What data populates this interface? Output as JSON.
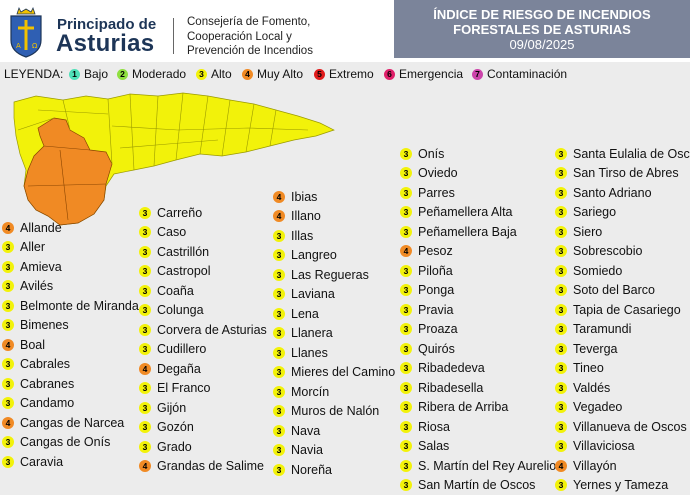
{
  "header": {
    "brand_line1": "Principado de",
    "brand_line2": "Asturias",
    "consejeria": [
      "Consejería de Fomento,",
      "Cooperación Local y",
      "Prevención de Incendios"
    ],
    "title_line1": "ÍNDICE DE RIESGO DE INCENDIOS",
    "title_line2": "FORESTALES DE ASTURIAS",
    "date": "09/08/2025"
  },
  "colors": {
    "1": "#4fe0b8",
    "2": "#8fe040",
    "3": "#f2f20a",
    "4": "#f08a24",
    "5": "#e11b1b",
    "6": "#e0206a",
    "7": "#cc44aa",
    "map_yellow": "#f2f20a",
    "map_orange": "#f08a24",
    "title_bg": "#7b849a"
  },
  "legend": {
    "title": "LEYENDA:",
    "items": [
      {
        "num": "1",
        "label": "Bajo"
      },
      {
        "num": "2",
        "label": "Moderado"
      },
      {
        "num": "3",
        "label": "Alto"
      },
      {
        "num": "4",
        "label": "Muy Alto"
      },
      {
        "num": "5",
        "label": "Extremo"
      },
      {
        "num": "6",
        "label": "Emergencia"
      },
      {
        "num": "7",
        "label": "Contaminación"
      }
    ]
  },
  "columns": [
    [
      {
        "n": "4",
        "name": "Allande"
      },
      {
        "n": "3",
        "name": "Aller"
      },
      {
        "n": "3",
        "name": "Amieva"
      },
      {
        "n": "3",
        "name": "Avilés"
      },
      {
        "n": "3",
        "name": "Belmonte de Miranda"
      },
      {
        "n": "3",
        "name": "Bimenes"
      },
      {
        "n": "4",
        "name": "Boal"
      },
      {
        "n": "3",
        "name": "Cabrales"
      },
      {
        "n": "3",
        "name": "Cabranes"
      },
      {
        "n": "3",
        "name": "Candamo"
      },
      {
        "n": "4",
        "name": "Cangas de Narcea"
      },
      {
        "n": "3",
        "name": "Cangas de Onís"
      },
      {
        "n": "3",
        "name": "Caravia"
      }
    ],
    [
      {
        "n": "3",
        "name": "Carreño"
      },
      {
        "n": "3",
        "name": "Caso"
      },
      {
        "n": "3",
        "name": "Castrillón"
      },
      {
        "n": "3",
        "name": "Castropol"
      },
      {
        "n": "3",
        "name": "Coaña"
      },
      {
        "n": "3",
        "name": "Colunga"
      },
      {
        "n": "3",
        "name": "Corvera de Asturias"
      },
      {
        "n": "3",
        "name": "Cudillero"
      },
      {
        "n": "4",
        "name": "Degaña"
      },
      {
        "n": "3",
        "name": "El Franco"
      },
      {
        "n": "3",
        "name": "Gijón"
      },
      {
        "n": "3",
        "name": "Gozón"
      },
      {
        "n": "3",
        "name": "Grado"
      },
      {
        "n": "4",
        "name": "Grandas de Salime"
      }
    ],
    [
      {
        "n": "4",
        "name": "Ibias"
      },
      {
        "n": "4",
        "name": "Illano"
      },
      {
        "n": "3",
        "name": "Illas"
      },
      {
        "n": "3",
        "name": "Langreo"
      },
      {
        "n": "3",
        "name": "Las Regueras"
      },
      {
        "n": "3",
        "name": "Laviana"
      },
      {
        "n": "3",
        "name": "Lena"
      },
      {
        "n": "3",
        "name": "Llanera"
      },
      {
        "n": "3",
        "name": "Llanes"
      },
      {
        "n": "3",
        "name": "Mieres del Camino"
      },
      {
        "n": "3",
        "name": "Morcín"
      },
      {
        "n": "3",
        "name": "Muros de Nalón"
      },
      {
        "n": "3",
        "name": "Nava"
      },
      {
        "n": "3",
        "name": "Navia"
      },
      {
        "n": "3",
        "name": "Noreña"
      }
    ],
    [
      {
        "n": "3",
        "name": "Onís"
      },
      {
        "n": "3",
        "name": "Oviedo"
      },
      {
        "n": "3",
        "name": "Parres"
      },
      {
        "n": "3",
        "name": "Peñamellera Alta"
      },
      {
        "n": "3",
        "name": "Peñamellera Baja"
      },
      {
        "n": "4",
        "name": "Pesoz"
      },
      {
        "n": "3",
        "name": "Piloña"
      },
      {
        "n": "3",
        "name": "Ponga"
      },
      {
        "n": "3",
        "name": "Pravia"
      },
      {
        "n": "3",
        "name": "Proaza"
      },
      {
        "n": "3",
        "name": "Quirós"
      },
      {
        "n": "3",
        "name": "Ribadedeva"
      },
      {
        "n": "3",
        "name": "Ribadesella"
      },
      {
        "n": "3",
        "name": "Ribera de Arriba"
      },
      {
        "n": "3",
        "name": "Riosa"
      },
      {
        "n": "3",
        "name": "Salas"
      },
      {
        "n": "3",
        "name": "S. Martín del Rey Aurelio"
      },
      {
        "n": "3",
        "name": "San Martín de Oscos"
      }
    ],
    [
      {
        "n": "3",
        "name": "Santa Eulalia de Oscos"
      },
      {
        "n": "3",
        "name": "San Tirso de Abres"
      },
      {
        "n": "3",
        "name": "Santo Adriano"
      },
      {
        "n": "3",
        "name": "Sariego"
      },
      {
        "n": "3",
        "name": "Siero"
      },
      {
        "n": "3",
        "name": "Sobrescobio"
      },
      {
        "n": "3",
        "name": "Somiedo"
      },
      {
        "n": "3",
        "name": "Soto del Barco"
      },
      {
        "n": "3",
        "name": "Tapia de Casariego"
      },
      {
        "n": "3",
        "name": "Taramundi"
      },
      {
        "n": "3",
        "name": "Teverga"
      },
      {
        "n": "3",
        "name": "Tineo"
      },
      {
        "n": "3",
        "name": "Valdés"
      },
      {
        "n": "3",
        "name": "Vegadeo"
      },
      {
        "n": "3",
        "name": "Villanueva de Oscos"
      },
      {
        "n": "3",
        "name": "Villaviciosa"
      },
      {
        "n": "4",
        "name": "Villayón"
      },
      {
        "n": "3",
        "name": "Yernes y Tameza"
      }
    ]
  ]
}
